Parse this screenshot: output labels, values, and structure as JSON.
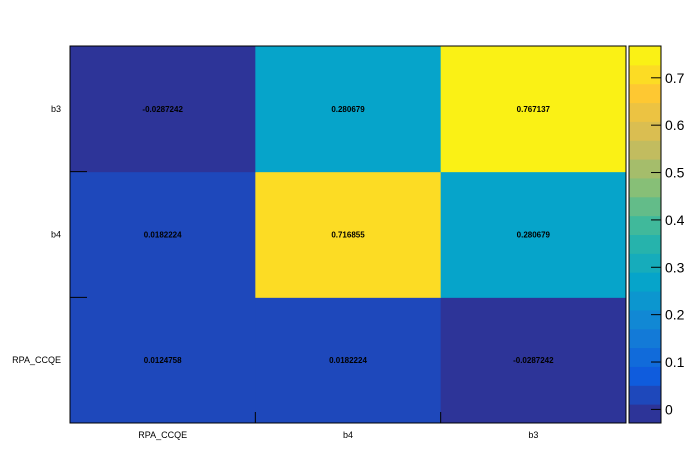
{
  "chart_data": {
    "type": "heatmap",
    "x_categories": [
      "RPA_CCQE",
      "b4",
      "b3"
    ],
    "y_categories": [
      "RPA_CCQE",
      "b4",
      "b3"
    ],
    "values": [
      [
        0.0124758,
        0.0182224,
        -0.0287242
      ],
      [
        0.0182224,
        0.716855,
        0.280679
      ],
      [
        -0.0287242,
        0.280679,
        0.767137
      ]
    ],
    "cell_labels": [
      [
        "0.0124758",
        "0.0182224",
        "-0.0287242"
      ],
      [
        "0.0182224",
        "0.716855",
        "0.280679"
      ],
      [
        "-0.0287242",
        "0.280679",
        "0.767137"
      ]
    ],
    "zlim": [
      -0.0287242,
      0.767137
    ],
    "z_ticks": [
      0,
      0.1,
      0.2,
      0.3,
      0.4,
      0.5,
      0.6,
      0.7
    ],
    "z_tick_labels": [
      "0",
      "0.1",
      "0.2",
      "0.3",
      "0.4",
      "0.5",
      "0.6",
      "0.7"
    ],
    "colormap": [
      "#352a87",
      "#0f5cdd",
      "#1481d6",
      "#06a4ca",
      "#2eb7a4",
      "#87bf77",
      "#d1bb59",
      "#fec832",
      "#f9fb0e"
    ],
    "title": "",
    "xlabel": "",
    "ylabel": "",
    "colorbar": true,
    "grid": false
  }
}
